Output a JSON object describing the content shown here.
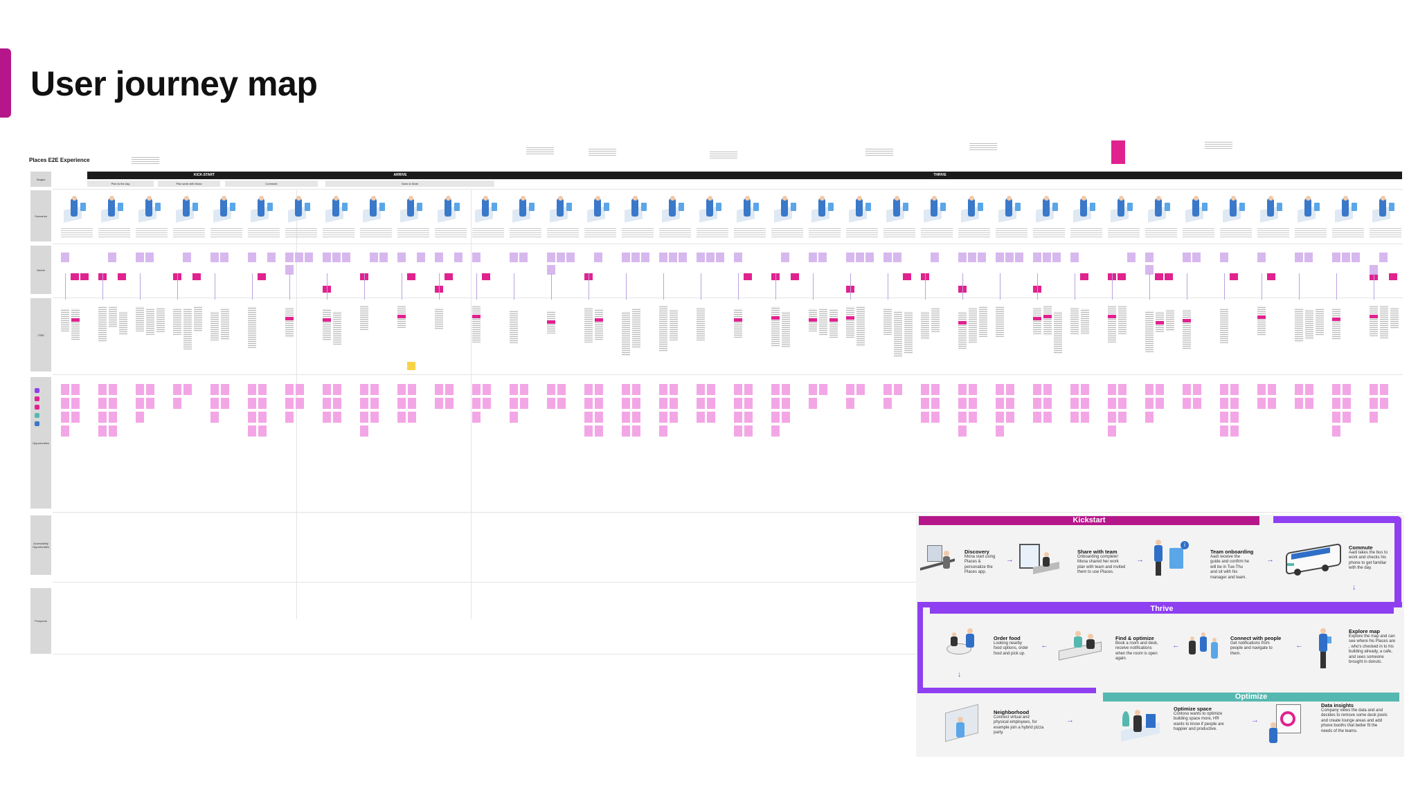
{
  "page": {
    "title": "User journey map"
  },
  "board": {
    "title": "Places E2E Experience",
    "stages": [
      "KICK-START",
      "ARRIVE",
      "THRIVE"
    ],
    "rows": [
      "Stages",
      "Scenarios",
      "Needs",
      "JTBD",
      "Opportunities",
      "Accessibility Opportunities",
      "Prospects"
    ],
    "phases": [
      "Plan to the day",
      "Plan work with Mona",
      "Commute",
      "Goes to Work"
    ]
  },
  "summary": {
    "kickstart": {
      "label": "Kickstart",
      "steps": [
        {
          "title": "Discovery",
          "desc": [
            "Mona start using",
            "Places &",
            "personalize the",
            "Places app."
          ]
        },
        {
          "title": "Share with team",
          "desc": [
            "Onboarding complete!",
            "Mona shared her work",
            "plan with team and invited",
            "them to use Places."
          ]
        },
        {
          "title": "Team onboarding",
          "desc": [
            "Aadi receive the",
            "guide and confirm he",
            "will be in Tue-Thu",
            "and sit with his",
            "manager and team."
          ]
        },
        {
          "title": "Commute",
          "desc": [
            "Aadi takes the bus to",
            "work and checks his",
            "phone to get familiar",
            "with the day."
          ]
        }
      ]
    },
    "thrive": {
      "label": "Thrive",
      "steps": [
        {
          "title": "Order food",
          "desc": [
            "Looking nearby",
            "food options, order",
            "food and pick up."
          ]
        },
        {
          "title": "Find & optimize",
          "desc": [
            "Book a room and desk,",
            "receive notifications",
            "when the room is open",
            "again."
          ]
        },
        {
          "title": "Connect with people",
          "desc": [
            "Get notifications from",
            "people and navigate to",
            "them."
          ]
        },
        {
          "title": "Explore map",
          "desc": [
            "Explore the map and can",
            "see where his Places are",
            ", who's checked in to his",
            "building already, a cafe,",
            "and sees someone",
            "brought in donuts."
          ]
        }
      ]
    },
    "optimize": {
      "label": "Optimize",
      "steps": [
        {
          "title": "Neighborhood",
          "desc": [
            "Connect virtual and",
            "physical employees, for",
            "example join a hybrid pizza",
            "party."
          ]
        },
        {
          "title": "Optimize space",
          "desc": [
            "Contoso wants to optimize",
            "building space more, HR",
            "wants to know if people are",
            "happier and productive."
          ]
        },
        {
          "title": "Data insights",
          "desc": [
            "Company views the data and and",
            "decides to remove some desk pools",
            "and create lounge areas and add",
            "phone booths that better fit the",
            "needs of the teams."
          ]
        }
      ]
    },
    "colors": {
      "kickstart": "#b5178a",
      "thrive": "#8e3ff0",
      "optimize": "#55b8b0",
      "arrow": "#7a3ee0"
    }
  }
}
